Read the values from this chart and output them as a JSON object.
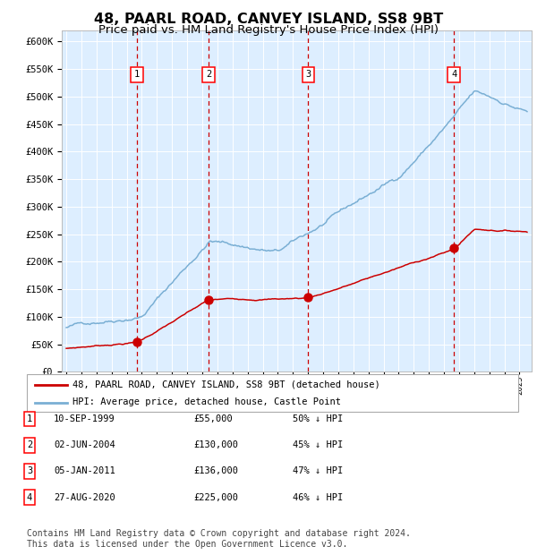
{
  "title": "48, PAARL ROAD, CANVEY ISLAND, SS8 9BT",
  "subtitle": "Price paid vs. HM Land Registry's House Price Index (HPI)",
  "title_fontsize": 11.5,
  "subtitle_fontsize": 9.5,
  "background_color": "#ffffff",
  "plot_bg_color": "#ddeeff",
  "grid_color": "#ffffff",
  "ylim": [
    0,
    620000
  ],
  "yticks": [
    0,
    50000,
    100000,
    150000,
    200000,
    250000,
    300000,
    350000,
    400000,
    450000,
    500000,
    550000,
    600000
  ],
  "xlim_start": 1994.7,
  "xlim_end": 2025.8,
  "sale_dates": [
    1999.69,
    2004.42,
    2011.01,
    2020.65
  ],
  "sale_prices": [
    55000,
    130000,
    136000,
    225000
  ],
  "sale_labels": [
    "1",
    "2",
    "3",
    "4"
  ],
  "red_line_color": "#cc0000",
  "blue_line_color": "#7aafd4",
  "sale_marker_color": "#cc0000",
  "vline_color": "#cc0000",
  "legend_red_label": "48, PAARL ROAD, CANVEY ISLAND, SS8 9BT (detached house)",
  "legend_blue_label": "HPI: Average price, detached house, Castle Point",
  "table_rows": [
    [
      "1",
      "10-SEP-1999",
      "£55,000",
      "50% ↓ HPI"
    ],
    [
      "2",
      "02-JUN-2004",
      "£130,000",
      "45% ↓ HPI"
    ],
    [
      "3",
      "05-JAN-2011",
      "£136,000",
      "47% ↓ HPI"
    ],
    [
      "4",
      "27-AUG-2020",
      "£225,000",
      "46% ↓ HPI"
    ]
  ],
  "footnote": "Contains HM Land Registry data © Crown copyright and database right 2024.\nThis data is licensed under the Open Government Licence v3.0.",
  "footnote_fontsize": 7.0
}
